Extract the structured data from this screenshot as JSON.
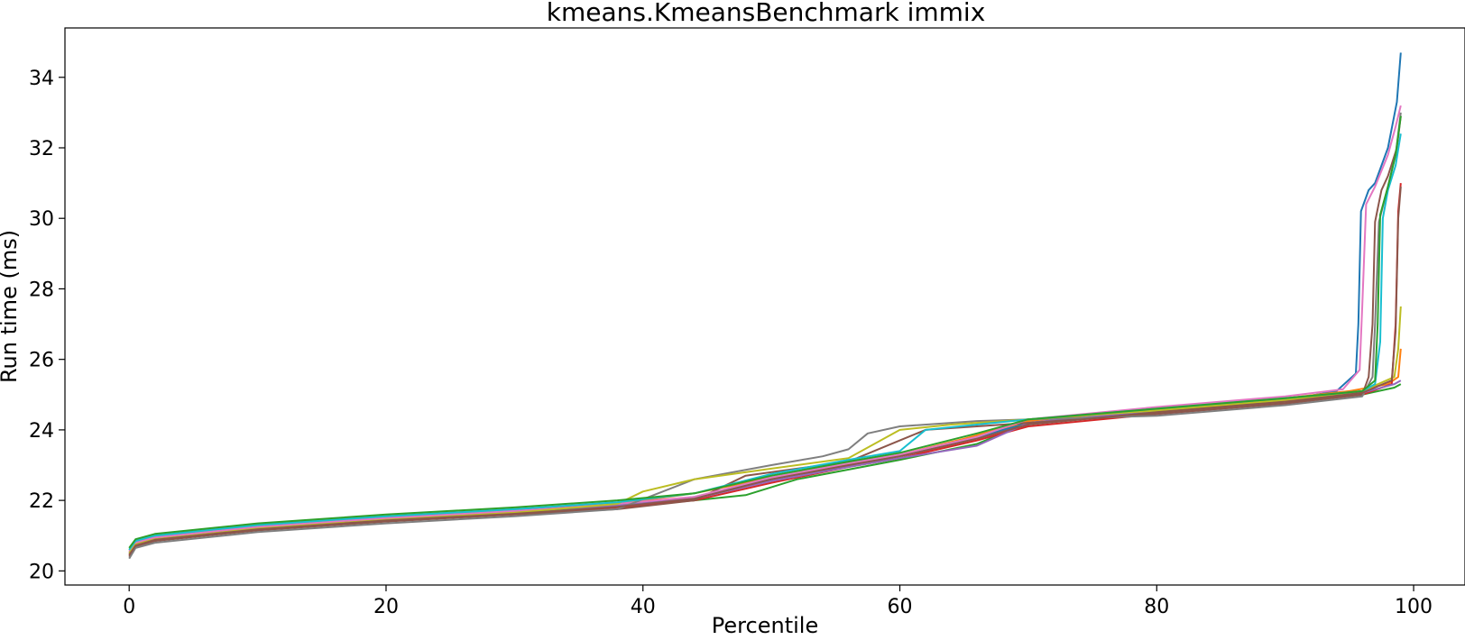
{
  "chart_data": {
    "type": "line",
    "title": "kmeans.KmeansBenchmark immix",
    "xlabel": "Percentile",
    "ylabel": "Run time (ms)",
    "xlim": [
      -5,
      104
    ],
    "ylim": [
      19.6,
      35.4
    ],
    "xticks": [
      0,
      20,
      40,
      60,
      80,
      100
    ],
    "yticks": [
      20,
      22,
      24,
      26,
      28,
      30,
      32,
      34
    ],
    "grid": false,
    "legend": "none",
    "series": [
      {
        "color": "#1f77b4",
        "x": [
          0,
          0.5,
          2,
          10,
          20,
          30,
          38,
          44,
          50,
          56,
          60,
          65,
          70,
          80,
          90,
          94,
          95.5,
          95.7,
          95.9,
          96.5,
          97,
          98,
          98.7,
          99
        ],
        "y": [
          20.5,
          20.75,
          20.9,
          21.2,
          21.45,
          21.65,
          21.85,
          22.1,
          22.6,
          23.0,
          23.3,
          23.7,
          24.2,
          24.55,
          24.85,
          25.1,
          25.6,
          27.0,
          30.2,
          30.8,
          31.0,
          32.0,
          33.3,
          34.7
        ]
      },
      {
        "color": "#ff7f0e",
        "x": [
          0,
          0.5,
          2,
          10,
          20,
          30,
          38,
          44,
          50,
          56,
          60,
          65,
          70,
          80,
          90,
          95,
          98,
          98.8,
          99
        ],
        "y": [
          20.55,
          20.8,
          20.95,
          21.25,
          21.5,
          21.7,
          21.9,
          22.2,
          22.65,
          23.05,
          23.3,
          23.75,
          24.25,
          24.6,
          24.9,
          25.1,
          25.3,
          25.5,
          26.3
        ]
      },
      {
        "color": "#2ca02c",
        "x": [
          0,
          0.5,
          2,
          10,
          20,
          30,
          38,
          44,
          48,
          52,
          60,
          66,
          70,
          80,
          90,
          96,
          98.5,
          99
        ],
        "y": [
          20.6,
          20.85,
          21.0,
          21.3,
          21.55,
          21.75,
          21.9,
          22.0,
          22.15,
          22.6,
          23.15,
          23.6,
          24.2,
          24.5,
          24.8,
          25.0,
          25.2,
          25.3
        ]
      },
      {
        "color": "#d62728",
        "x": [
          0,
          0.5,
          2,
          10,
          20,
          30,
          38,
          44,
          50,
          56,
          60,
          66,
          70,
          80,
          90,
          96,
          98.3,
          98.6,
          98.8,
          99
        ],
        "y": [
          20.45,
          20.75,
          20.9,
          21.2,
          21.45,
          21.6,
          21.8,
          22.0,
          22.5,
          22.95,
          23.2,
          23.7,
          24.1,
          24.45,
          24.75,
          25.0,
          25.3,
          27.0,
          30.2,
          31.0
        ]
      },
      {
        "color": "#9467bd",
        "x": [
          0,
          0.5,
          2,
          10,
          20,
          30,
          38,
          44,
          50,
          56,
          60,
          66,
          70,
          80,
          90,
          96,
          98.5,
          99
        ],
        "y": [
          20.5,
          20.8,
          20.95,
          21.25,
          21.5,
          21.7,
          21.85,
          22.05,
          22.55,
          22.95,
          23.2,
          23.55,
          24.2,
          24.55,
          24.85,
          25.05,
          25.3,
          25.4
        ]
      },
      {
        "color": "#8c564b",
        "x": [
          0,
          0.5,
          2,
          10,
          20,
          30,
          38,
          44,
          48,
          52,
          56,
          60,
          62,
          66,
          70,
          80,
          90,
          96,
          96.5,
          96.8,
          97,
          97.5,
          98,
          98.7,
          99
        ],
        "y": [
          20.4,
          20.7,
          20.85,
          21.15,
          21.4,
          21.6,
          21.75,
          22.0,
          22.7,
          22.9,
          23.1,
          23.7,
          24.0,
          24.1,
          24.2,
          24.45,
          24.75,
          25.0,
          25.5,
          27.0,
          29.9,
          30.8,
          31.2,
          32.0,
          32.9
        ]
      },
      {
        "color": "#e377c2",
        "x": [
          0,
          0.5,
          2,
          10,
          20,
          30,
          38,
          44,
          50,
          56,
          60,
          66,
          70,
          80,
          90,
          94.5,
          95.8,
          96.0,
          96.3,
          97,
          98,
          98.6,
          99
        ],
        "y": [
          20.55,
          20.8,
          20.95,
          21.25,
          21.5,
          21.7,
          21.9,
          22.1,
          22.65,
          23.05,
          23.3,
          23.8,
          24.3,
          24.65,
          24.95,
          25.15,
          25.7,
          27.5,
          30.4,
          30.9,
          31.8,
          32.6,
          33.2
        ]
      },
      {
        "color": "#7f7f7f",
        "x": [
          0,
          0.5,
          2,
          10,
          20,
          30,
          38,
          44,
          50,
          54,
          56,
          57.5,
          60,
          66,
          70,
          80,
          90,
          96,
          96.8,
          97,
          97.3,
          98,
          98.6,
          99
        ],
        "y": [
          20.35,
          20.65,
          20.8,
          21.1,
          21.35,
          21.55,
          21.75,
          22.6,
          23.0,
          23.25,
          23.45,
          23.9,
          24.1,
          24.25,
          24.3,
          24.4,
          24.7,
          24.95,
          25.5,
          27.0,
          29.9,
          30.9,
          31.8,
          33.0
        ]
      },
      {
        "color": "#bcbd22",
        "x": [
          0,
          0.5,
          2,
          10,
          20,
          30,
          38,
          40,
          44,
          50,
          56,
          60,
          64,
          70,
          80,
          90,
          96,
          98.5,
          98.8,
          99
        ],
        "y": [
          20.5,
          20.75,
          20.9,
          21.2,
          21.45,
          21.65,
          21.9,
          22.25,
          22.6,
          22.9,
          23.2,
          24.0,
          24.15,
          24.3,
          24.55,
          24.85,
          25.1,
          25.5,
          26.3,
          27.5
        ]
      },
      {
        "color": "#17becf",
        "x": [
          0,
          0.5,
          2,
          10,
          20,
          30,
          38,
          44,
          50,
          56,
          60,
          62,
          66,
          70,
          80,
          90,
          96,
          97,
          97.4,
          97.6,
          98,
          98.6,
          99
        ],
        "y": [
          20.6,
          20.85,
          21.0,
          21.3,
          21.55,
          21.75,
          21.95,
          22.2,
          22.75,
          23.15,
          23.4,
          24.0,
          24.15,
          24.3,
          24.6,
          24.9,
          25.1,
          25.3,
          26.5,
          30.0,
          30.8,
          31.5,
          32.4
        ]
      },
      {
        "color": "#2ca02c",
        "x": [
          0,
          0.5,
          2,
          10,
          20,
          30,
          38,
          44,
          50,
          56,
          60,
          66,
          70,
          80,
          90,
          96,
          97,
          97.2,
          97.4,
          98,
          98.6,
          99
        ],
        "y": [
          20.65,
          20.9,
          21.05,
          21.35,
          21.6,
          21.8,
          22.0,
          22.2,
          22.7,
          23.1,
          23.35,
          23.9,
          24.3,
          24.6,
          24.9,
          25.1,
          25.4,
          27.0,
          30.1,
          30.9,
          31.8,
          32.9
        ]
      },
      {
        "color": "#8c564b",
        "x": [
          0,
          0.5,
          2,
          10,
          20,
          30,
          38,
          44,
          50,
          56,
          60,
          66,
          70,
          80,
          90,
          96,
          98.3,
          98.6,
          98.8,
          99
        ],
        "y": [
          20.45,
          20.72,
          20.88,
          21.18,
          21.43,
          21.62,
          21.82,
          22.05,
          22.6,
          23.0,
          23.25,
          23.75,
          24.15,
          24.5,
          24.8,
          25.05,
          25.4,
          26.8,
          30.0,
          30.9
        ]
      }
    ]
  }
}
